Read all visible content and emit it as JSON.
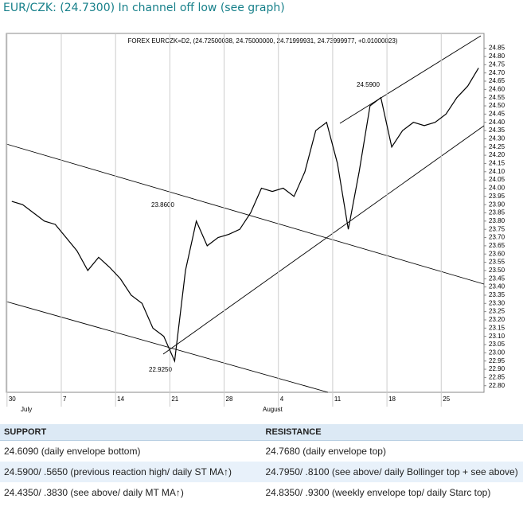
{
  "header": {
    "title": "EUR/CZK: (24.7300) In channel off low (see graph)"
  },
  "chart_data": {
    "type": "line",
    "subtitle": "FOREX EURCZK=D2, (24.72500038, 24.75000000, 24.71999931, 24.73999977, +0.01000023)",
    "categories": [
      "30",
      null,
      null,
      null,
      null,
      "7",
      null,
      null,
      null,
      null,
      "14",
      null,
      null,
      null,
      null,
      "21",
      null,
      null,
      null,
      null,
      "28",
      null,
      null,
      null,
      null,
      "4",
      null,
      null,
      null,
      null,
      "11",
      null,
      null,
      null,
      null,
      "18",
      null,
      null,
      null,
      null,
      "25",
      null,
      null,
      null
    ],
    "month_labels": [
      "July",
      "August"
    ],
    "series": [
      {
        "color": "#000000",
        "values": [
          23.92,
          23.9,
          23.85,
          23.8,
          23.78,
          23.7,
          23.62,
          23.5,
          23.58,
          23.52,
          23.45,
          23.35,
          23.3,
          23.15,
          23.1,
          22.95,
          23.5,
          23.8,
          23.65,
          23.7,
          23.72,
          23.75,
          23.85,
          24.0,
          23.98,
          24.0,
          23.95,
          24.1,
          24.35,
          24.4,
          24.15,
          23.75,
          24.1,
          24.5,
          24.55,
          24.25,
          24.35,
          24.4,
          24.38,
          24.4,
          24.45,
          24.55,
          24.62,
          24.73
        ]
      }
    ],
    "annotations": [
      "24.5900",
      "23.8600",
      "22.9250"
    ],
    "ylim": [
      22.76,
      24.94
    ],
    "yticks": [
      {
        "value": 22.8,
        "label": "22.80"
      },
      22.85,
      {
        "value": 22.9,
        "label": "22.90"
      },
      22.95,
      {
        "value": 23,
        "label": "23.00"
      },
      23.05,
      {
        "value": 23.1,
        "label": "23.10"
      },
      23.15,
      {
        "value": 23.2,
        "label": "23.20"
      },
      23.25,
      {
        "value": 23.3,
        "label": "23.30"
      },
      23.35,
      {
        "value": 23.4,
        "label": "23.40"
      },
      23.45,
      {
        "value": 23.5,
        "label": "23.50"
      },
      23.55,
      {
        "value": 23.6,
        "label": "23.60"
      },
      23.65,
      {
        "value": 23.7,
        "label": "23.70"
      },
      23.75,
      {
        "value": 23.8,
        "label": "23.80"
      },
      23.85,
      {
        "value": 23.9,
        "label": "23.90"
      },
      23.95,
      {
        "value": 24,
        "label": "24.00"
      },
      24.05,
      {
        "value": 24.1,
        "label": "24.10"
      },
      24.15,
      {
        "value": 24.2,
        "label": "24.20"
      },
      24.25,
      {
        "value": 24.3,
        "label": "24.30"
      },
      24.35,
      {
        "value": 24.4,
        "label": "24.40"
      },
      24.45,
      {
        "value": 24.5,
        "label": "24.50"
      },
      24.55,
      {
        "value": 24.6,
        "label": "24.60"
      },
      24.65,
      {
        "value": 24.7,
        "label": "24.70"
      },
      24.75,
      {
        "value": 24.8,
        "label": "24.80"
      },
      24.85
    ]
  },
  "table": {
    "headers": [
      "SUPPORT",
      "RESISTANCE"
    ],
    "rows": [
      [
        "24.6090 (daily envelope bottom)",
        "24.7680 (daily envelope top)"
      ],
      [
        "24.5900/ .5650 (previous reaction high/ daily ST MA↑)",
        "24.7950/ .8100 (see above/ daily Bollinger top + see above)"
      ],
      [
        "24.4350/ .3830 (see above/ daily MT MA↑)",
        "24.8350/ .9300 (weekly envelope top/ daily Starc top)"
      ]
    ]
  }
}
